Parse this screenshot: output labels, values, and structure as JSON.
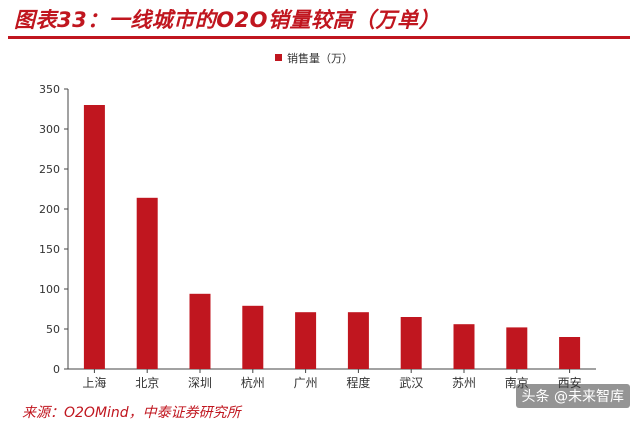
{
  "header": {
    "title": "图表33：一线城市的O2O销量较高（万单）"
  },
  "chart_data": {
    "type": "bar",
    "title": "",
    "xlabel": "",
    "ylabel": "",
    "categories": [
      "上海",
      "北京",
      "深圳",
      "杭州",
      "广州",
      "程度",
      "武汉",
      "苏州",
      "南京",
      "西安"
    ],
    "series": [
      {
        "name": "销售量（万）",
        "values": [
          330,
          214,
          94,
          79,
          71,
          71,
          65,
          56,
          52,
          40
        ],
        "color": "#c0161f"
      }
    ],
    "ylim": [
      0,
      350
    ],
    "yticks": [
      0,
      50,
      100,
      150,
      200,
      250,
      300,
      350
    ],
    "grid": false,
    "legend": "top-center"
  },
  "footer": {
    "source": "来源：O2OMind，中泰证券研究所"
  },
  "watermark": {
    "text": "头条 @未来智库"
  }
}
